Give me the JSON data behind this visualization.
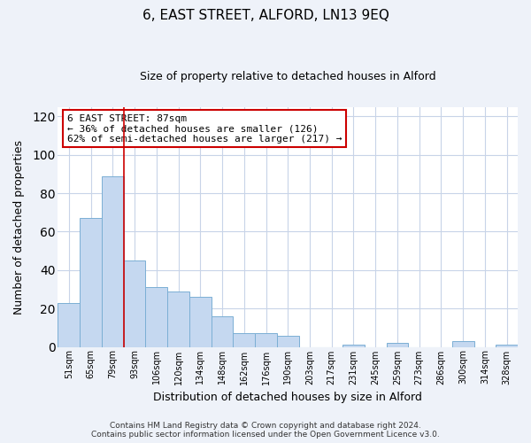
{
  "title": "6, EAST STREET, ALFORD, LN13 9EQ",
  "subtitle": "Size of property relative to detached houses in Alford",
  "xlabel": "Distribution of detached houses by size in Alford",
  "ylabel": "Number of detached properties",
  "bar_labels": [
    "51sqm",
    "65sqm",
    "79sqm",
    "93sqm",
    "106sqm",
    "120sqm",
    "134sqm",
    "148sqm",
    "162sqm",
    "176sqm",
    "190sqm",
    "203sqm",
    "217sqm",
    "231sqm",
    "245sqm",
    "259sqm",
    "273sqm",
    "286sqm",
    "300sqm",
    "314sqm",
    "328sqm"
  ],
  "bar_values": [
    23,
    67,
    89,
    45,
    31,
    29,
    26,
    16,
    7,
    7,
    6,
    0,
    0,
    1,
    0,
    2,
    0,
    0,
    3,
    0,
    1
  ],
  "bar_color": "#c5d8f0",
  "bar_edge_color": "#7bafd4",
  "vline_color": "#cc0000",
  "vline_x": 2.5,
  "annotation_text": "6 EAST STREET: 87sqm\n← 36% of detached houses are smaller (126)\n62% of semi-detached houses are larger (217) →",
  "annotation_box_color": "#ffffff",
  "annotation_box_edge_color": "#cc0000",
  "ylim": [
    0,
    125
  ],
  "yticks": [
    0,
    20,
    40,
    60,
    80,
    100,
    120
  ],
  "footer": "Contains HM Land Registry data © Crown copyright and database right 2024.\nContains public sector information licensed under the Open Government Licence v3.0.",
  "bg_color": "#eef2f9",
  "plot_bg_color": "#ffffff",
  "grid_color": "#c8d4e8",
  "title_fontsize": 11,
  "subtitle_fontsize": 9,
  "xlabel_fontsize": 9,
  "ylabel_fontsize": 9,
  "tick_fontsize": 7,
  "annotation_fontsize": 8,
  "footer_fontsize": 6.5
}
